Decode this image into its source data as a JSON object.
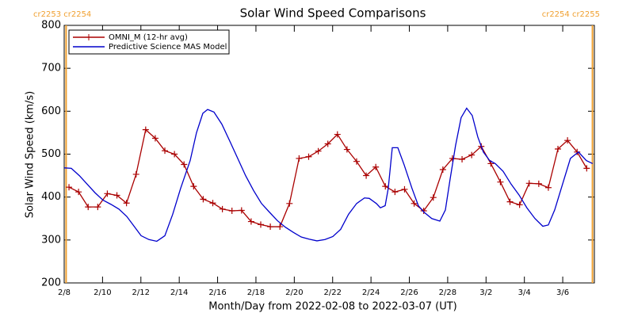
{
  "chart_data": {
    "type": "line",
    "title": "Solar Wind Speed Comparisons",
    "xlabel": "Month/Day from 2022-02-08 to 2022-03-07 (UT)",
    "ylabel": "Solar Wind Speed (km/s)",
    "xlim": [
      0,
      27.65
    ],
    "ylim": [
      200,
      800
    ],
    "xticks": [
      {
        "value": 0,
        "label": "2/8"
      },
      {
        "value": 2,
        "label": "2/10"
      },
      {
        "value": 4,
        "label": "2/12"
      },
      {
        "value": 6,
        "label": "2/14"
      },
      {
        "value": 8,
        "label": "2/16"
      },
      {
        "value": 10,
        "label": "2/18"
      },
      {
        "value": 12,
        "label": "2/20"
      },
      {
        "value": 14,
        "label": "2/22"
      },
      {
        "value": 16,
        "label": "2/24"
      },
      {
        "value": 18,
        "label": "2/26"
      },
      {
        "value": 20,
        "label": "2/28"
      },
      {
        "value": 22,
        "label": "3/2"
      },
      {
        "value": 24,
        "label": "3/4"
      },
      {
        "value": 26,
        "label": "3/6"
      }
    ],
    "yticks": [
      200,
      300,
      400,
      500,
      600,
      700,
      800
    ],
    "legend": "upper left",
    "boundaries": {
      "color": "#f0a030",
      "x": [
        0.1,
        27.55
      ],
      "labels": [
        "cr2253 cr2254",
        "cr2254 cr2255"
      ]
    },
    "series": [
      {
        "name": "OMNI_M (12-hr avg)",
        "color": "#aa0000",
        "marker": "plus",
        "x": [
          0.25,
          0.75,
          1.25,
          1.75,
          2.25,
          2.75,
          3.25,
          3.75,
          4.25,
          4.75,
          5.25,
          5.75,
          6.25,
          6.75,
          7.25,
          7.75,
          8.25,
          8.75,
          9.25,
          9.75,
          10.25,
          10.75,
          11.25,
          11.75,
          12.25,
          12.75,
          13.25,
          13.75,
          14.25,
          14.75,
          15.25,
          15.75,
          16.25,
          16.75,
          17.25,
          17.75,
          18.25,
          18.75,
          19.25,
          19.75,
          20.25,
          20.75,
          21.25,
          21.75,
          22.25,
          22.75,
          23.25,
          23.75,
          24.25,
          24.75,
          25.25,
          25.75,
          26.25,
          26.75,
          27.25
        ],
        "values": [
          423,
          412,
          377,
          377,
          408,
          404,
          386,
          453,
          557,
          537,
          508,
          500,
          476,
          425,
          395,
          386,
          372,
          368,
          369,
          343,
          336,
          331,
          331,
          385,
          490,
          494,
          507,
          524,
          546,
          511,
          483,
          450,
          470,
          425,
          412,
          418,
          385,
          368,
          399,
          464,
          490,
          488,
          498,
          518,
          478,
          435,
          389,
          382,
          432,
          431,
          422,
          512,
          532,
          505,
          467
        ]
      },
      {
        "name": "Predictive Science MAS Model",
        "color": "#0000cc",
        "x": [
          0,
          0.37,
          0.79,
          1.2,
          1.61,
          2.02,
          2.44,
          2.85,
          3.26,
          3.68,
          4.01,
          4.42,
          4.83,
          5.25,
          5.66,
          6.07,
          6.57,
          6.9,
          7.23,
          7.48,
          7.81,
          8.22,
          8.64,
          9.05,
          9.46,
          9.88,
          10.29,
          10.7,
          11.12,
          11.53,
          11.94,
          12.36,
          12.77,
          13.18,
          13.6,
          14.01,
          14.42,
          14.83,
          15.25,
          15.66,
          15.91,
          16.28,
          16.49,
          16.74,
          16.9,
          17.11,
          17.4,
          17.73,
          18.14,
          18.47,
          18.76,
          19.17,
          19.59,
          19.88,
          20.12,
          20.41,
          20.7,
          20.99,
          21.28,
          21.57,
          21.86,
          22.19,
          22.48,
          22.89,
          23.31,
          23.72,
          24.13,
          24.55,
          24.96,
          25.25,
          25.58,
          25.99,
          26.4,
          26.82,
          27.23,
          27.56
        ],
        "values": [
          468,
          467,
          450,
          430,
          410,
          393,
          383,
          372,
          355,
          330,
          310,
          301,
          297,
          310,
          360,
          420,
          485,
          550,
          595,
          604,
          598,
          570,
          530,
          490,
          450,
          415,
          385,
          365,
          345,
          330,
          318,
          307,
          302,
          298,
          301,
          308,
          325,
          360,
          385,
          398,
          397,
          385,
          375,
          380,
          420,
          515,
          515,
          475,
          420,
          380,
          365,
          350,
          344,
          370,
          440,
          520,
          585,
          607,
          590,
          540,
          505,
          485,
          478,
          460,
          430,
          405,
          375,
          350,
          332,
          335,
          370,
          430,
          490,
          505,
          485,
          478
        ]
      }
    ]
  }
}
